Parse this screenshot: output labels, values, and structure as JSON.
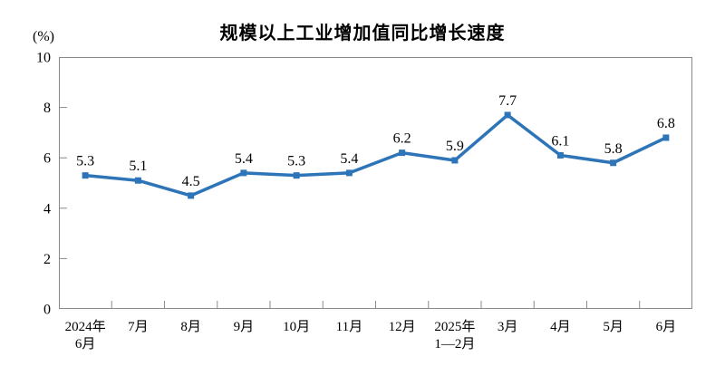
{
  "chart_data": {
    "type": "line",
    "title": "规模以上工业增加值同比增长速度",
    "unit_label": "(%)",
    "categories": [
      [
        "2024年",
        "6月"
      ],
      [
        "7月"
      ],
      [
        "8月"
      ],
      [
        "9月"
      ],
      [
        "10月"
      ],
      [
        "11月"
      ],
      [
        "12月"
      ],
      [
        "2025年",
        "1—2月"
      ],
      [
        "3月"
      ],
      [
        "4月"
      ],
      [
        "5月"
      ],
      [
        "6月"
      ]
    ],
    "values": [
      5.3,
      5.1,
      4.5,
      5.4,
      5.3,
      5.4,
      6.2,
      5.9,
      7.7,
      6.1,
      5.8,
      6.8
    ],
    "ylim": [
      0,
      10
    ],
    "ytick_step": 2,
    "yticks": [
      0,
      2,
      4,
      6,
      8,
      10
    ],
    "grid": false,
    "legend": "none",
    "marker": "square",
    "line_color": "#2E74B8",
    "axis_color": "#8A8A8A",
    "text_color": "#000000"
  }
}
